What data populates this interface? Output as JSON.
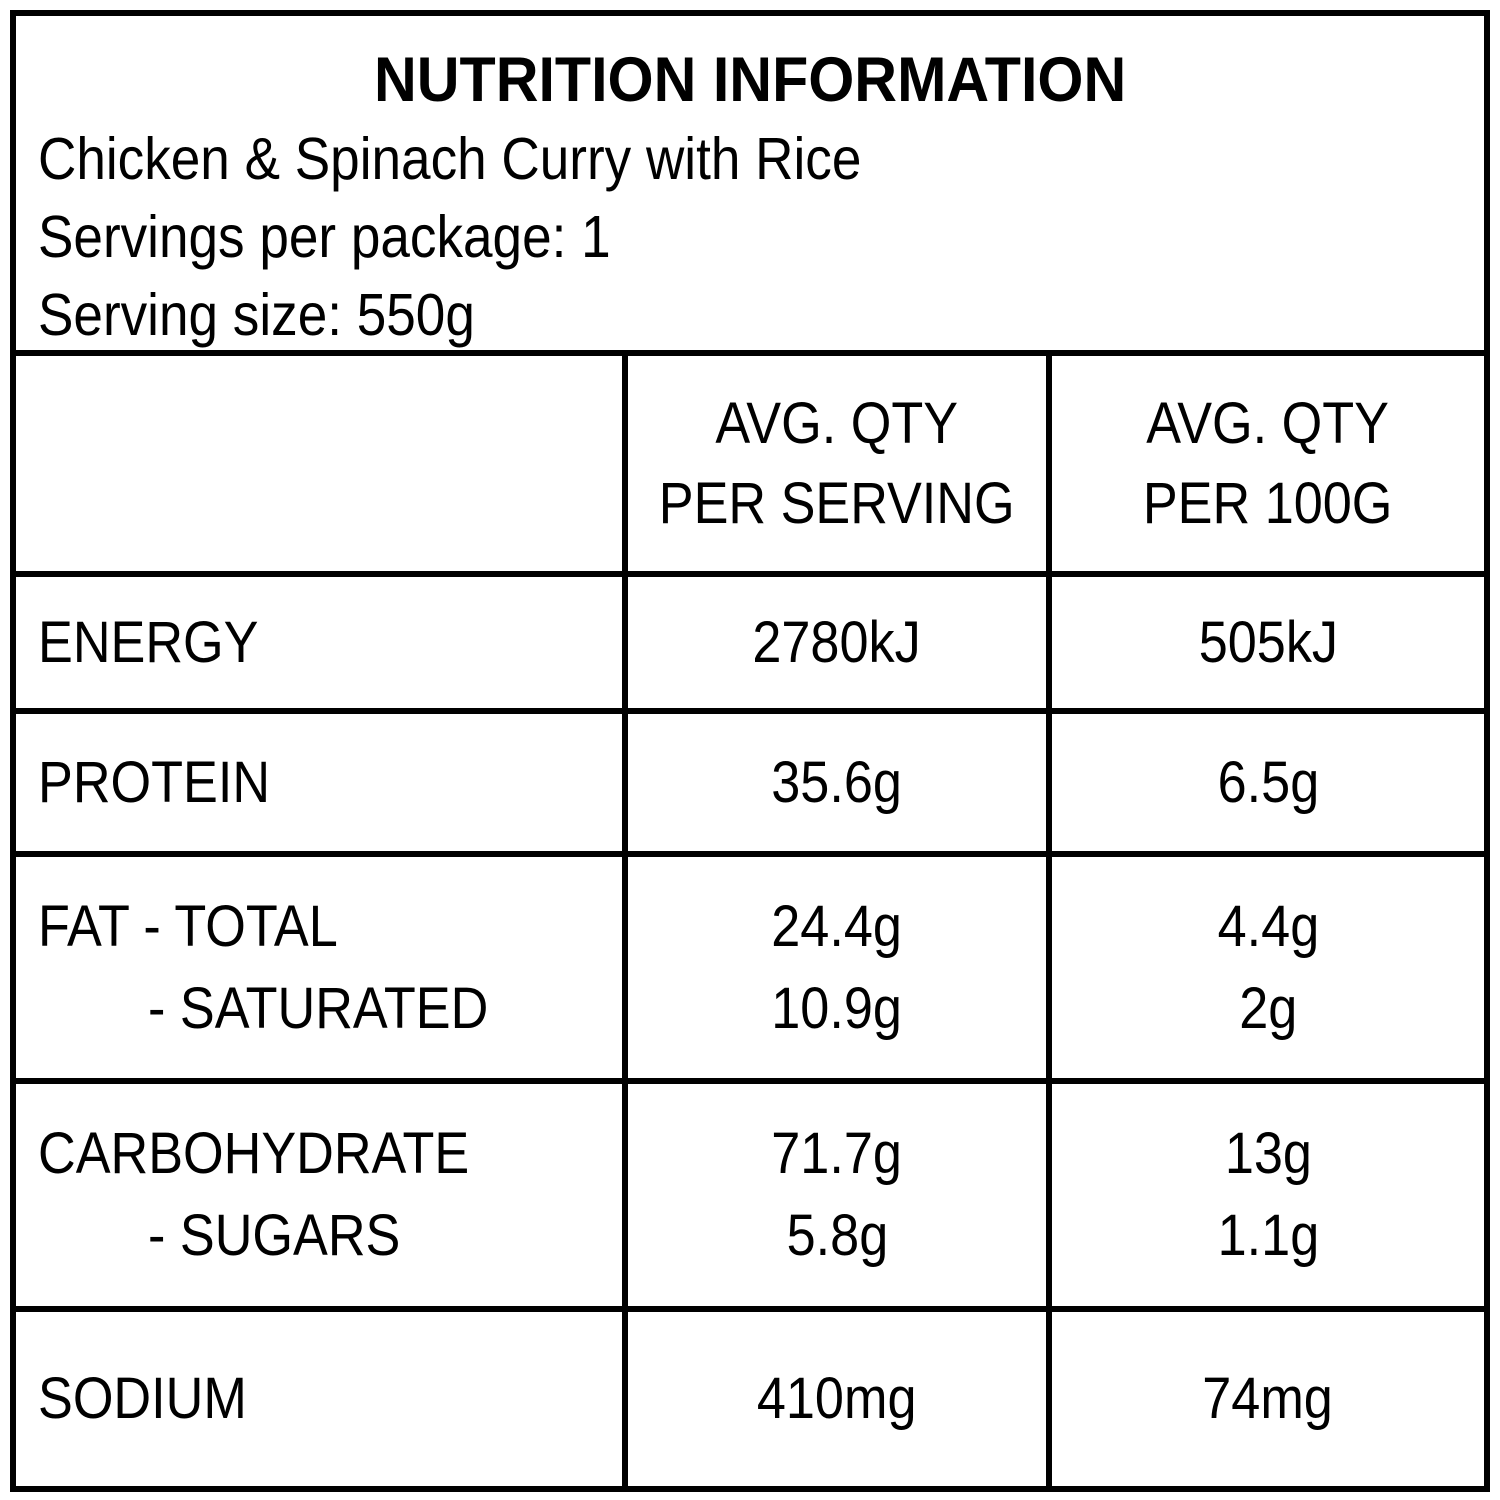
{
  "title": "NUTRITION INFORMATION",
  "product_name": "Chicken & Spinach Curry with Rice",
  "servings_per_package": "Servings per package: 1",
  "serving_size": "Serving size: 550g",
  "table": {
    "col_headers": {
      "per_serving": "AVG. QTY\nPER SERVING",
      "per_100g": "AVG. QTY\nPER 100G"
    },
    "rows": [
      {
        "label": "ENERGY",
        "serving": "2780kJ",
        "per100": "505kJ"
      },
      {
        "label": "PROTEIN",
        "serving": "35.6g",
        "per100": "6.5g"
      },
      {
        "label": "FAT - TOTAL",
        "sub_label": "- SATURATED",
        "serving": "24.4g",
        "sub_serving": "10.9g",
        "per100": "4.4g",
        "sub_per100": "2g"
      },
      {
        "label": "CARBOHYDRATE",
        "sub_label": "- SUGARS",
        "serving": "71.7g",
        "sub_serving": "5.8g",
        "per100": "13g",
        "sub_per100": "1.1g"
      },
      {
        "label": "SODIUM",
        "serving": "410mg",
        "per100": "74mg"
      }
    ]
  },
  "colors": {
    "text": "#000000",
    "rule": "#000000",
    "background": "#ffffff"
  }
}
